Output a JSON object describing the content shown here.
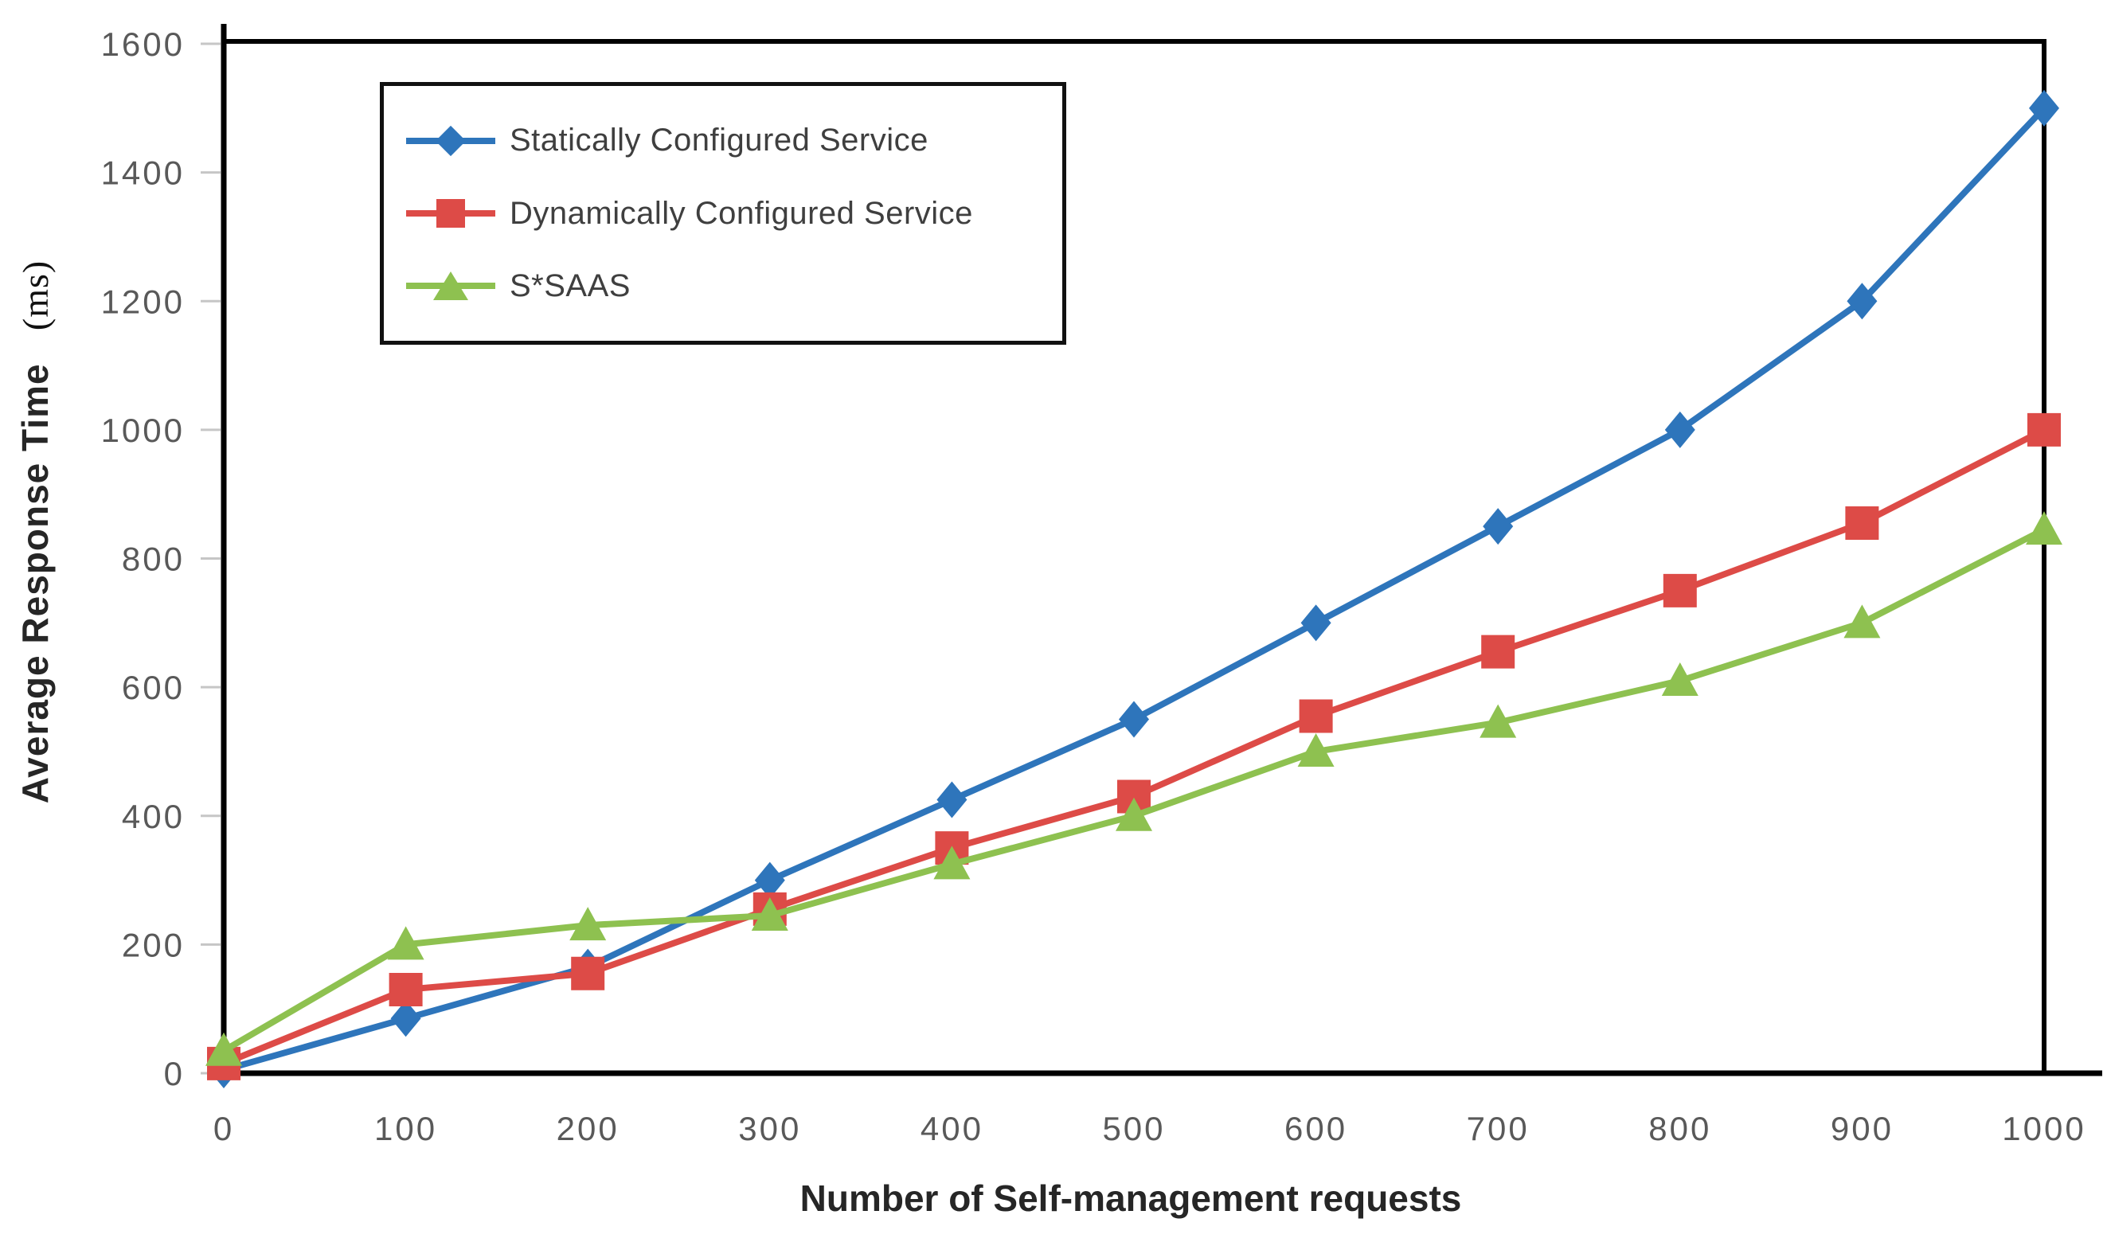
{
  "chart_data": {
    "type": "line",
    "x": [
      0,
      100,
      200,
      300,
      400,
      500,
      600,
      700,
      800,
      900,
      1000
    ],
    "series": [
      {
        "name": "Statically Configured Service",
        "color": "#2E75BB",
        "marker": "diamond",
        "values": [
          5,
          85,
          165,
          300,
          425,
          550,
          700,
          850,
          1000,
          1200,
          1500
        ]
      },
      {
        "name": "Dynamically Configured Service",
        "color": "#DD4B47",
        "marker": "square",
        "values": [
          15,
          130,
          155,
          255,
          350,
          430,
          555,
          655,
          750,
          855,
          1000
        ]
      },
      {
        "name": "S*SAAS",
        "color": "#8EC150",
        "marker": "triangle-up",
        "values": [
          35,
          200,
          230,
          245,
          325,
          400,
          500,
          545,
          610,
          700,
          845
        ]
      }
    ],
    "title": "",
    "xlabel": "Number of Self-management requests",
    "ylabel": "Average Response Time (ms)",
    "ylabel_main": "Average Response Time",
    "ylabel_unit": "(ms)",
    "xlim": [
      0,
      1000
    ],
    "ylim": [
      0,
      1600
    ],
    "x_tick_step": 100,
    "y_tick_step": 200,
    "grid": false,
    "legend_position": "top-left-inside",
    "axis_color": "#000000",
    "tick_mark_color": "#c6c6c6",
    "tick_label_color": "#595959",
    "plot_background": "#ffffff"
  }
}
